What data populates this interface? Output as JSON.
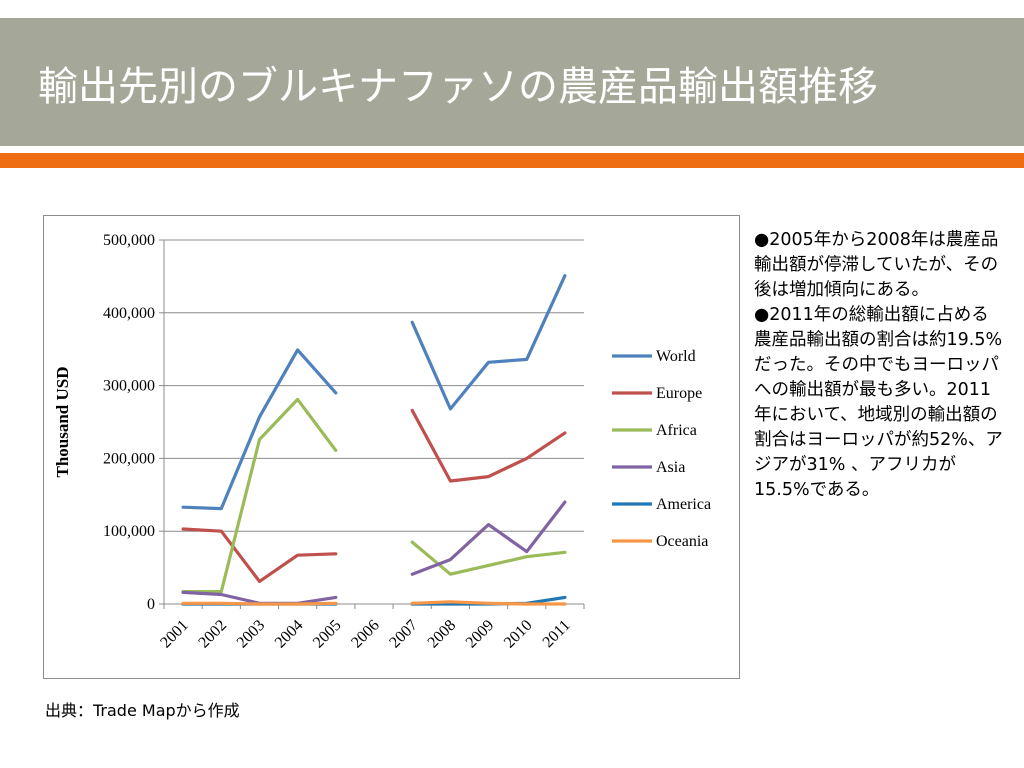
{
  "slide": {
    "title": "輸出先別のブルキナファソの農産品輸出額推移",
    "colors": {
      "title_bar": "#a5a899",
      "accent": "#ee6d13"
    }
  },
  "notes": [
    "●2005年から2008年は農産品輸出額が停滞していたが、その後は増加傾向にある。",
    "●2011年の総輸出額に占める農産品輸出額の割合は約19.5%だった。その中でもヨーロッパへの輸出額が最も多い。2011年において、地域別の輸出額の割合はヨーロッパが約52%、アジアが31% 、アフリカが15.5%である。"
  ],
  "source": "出典：Trade Mapから作成",
  "chart_data": {
    "type": "line",
    "title": "",
    "xlabel": "",
    "ylabel": "Thousand USD",
    "categories": [
      "2001",
      "2002",
      "2003",
      "2004",
      "2005",
      "2006",
      "2007",
      "2008",
      "2009",
      "2010",
      "2011"
    ],
    "ylim": [
      0,
      500000
    ],
    "yticks": [
      0,
      100000,
      200000,
      300000,
      400000,
      500000
    ],
    "ytick_labels": [
      "0",
      "100,000",
      "200,000",
      "300,000",
      "400,000",
      "500,000"
    ],
    "grid": true,
    "legend_position": "right",
    "series": [
      {
        "name": "World",
        "color": "#4f81bd",
        "values": [
          133000,
          131000,
          257000,
          349000,
          290000,
          null,
          387000,
          268000,
          332000,
          336000,
          451000
        ]
      },
      {
        "name": "Europe",
        "color": "#c0504d",
        "values": [
          103000,
          100000,
          31000,
          67000,
          69000,
          null,
          266000,
          169000,
          175000,
          200000,
          235000
        ]
      },
      {
        "name": "Africa",
        "color": "#9bbb59",
        "values": [
          17000,
          17000,
          226000,
          281000,
          211000,
          null,
          85000,
          41000,
          53000,
          65000,
          71000
        ]
      },
      {
        "name": "Asia",
        "color": "#8064a2",
        "values": [
          16000,
          13000,
          1000,
          1000,
          9000,
          null,
          41000,
          61000,
          109000,
          72000,
          140000
        ]
      },
      {
        "name": "America",
        "color": "#1f77b4",
        "values": [
          0,
          0,
          0,
          0,
          0,
          null,
          0,
          0,
          0,
          1000,
          9000
        ]
      },
      {
        "name": "Oceania",
        "color": "#f79646",
        "values": [
          1000,
          1000,
          0,
          0,
          1000,
          null,
          1000,
          3000,
          1000,
          0,
          0
        ]
      }
    ]
  }
}
